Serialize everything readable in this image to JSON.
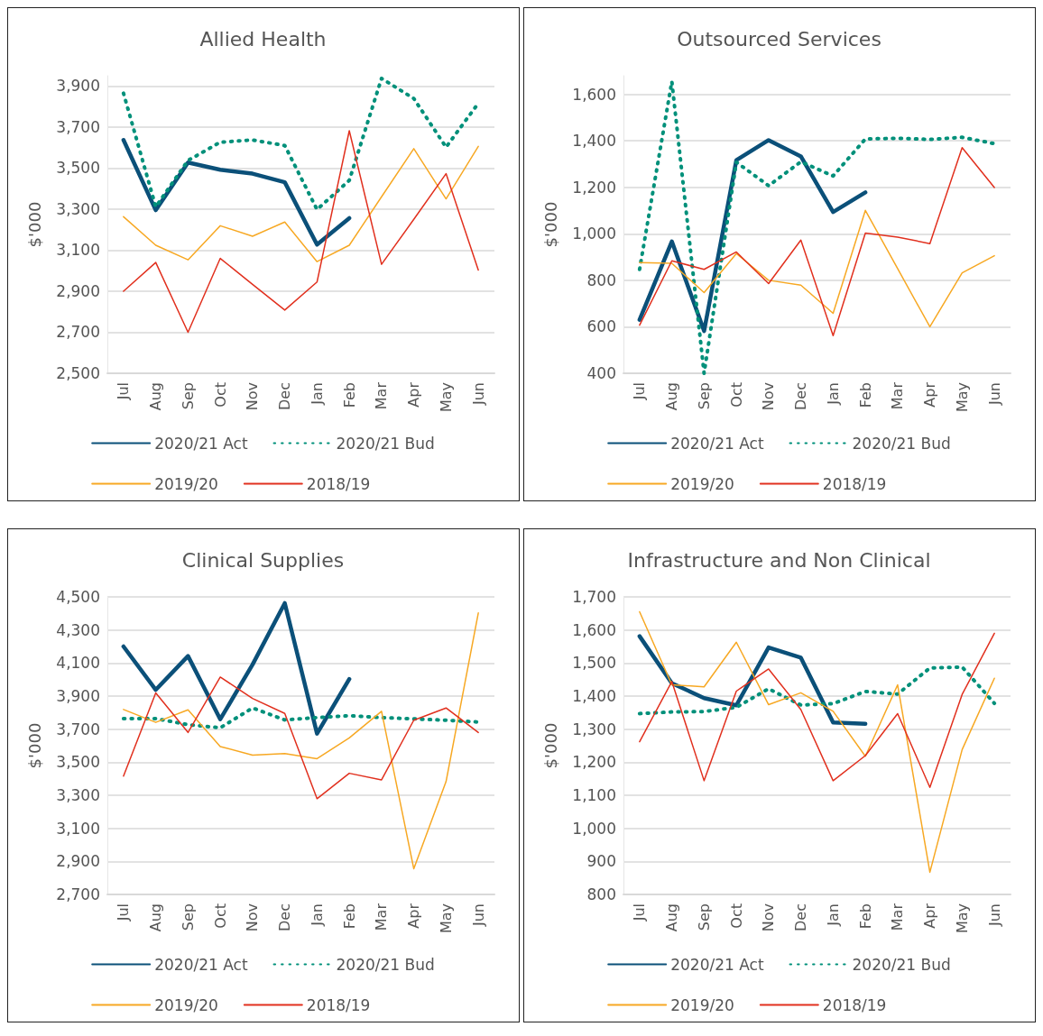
{
  "chart_data": [
    {
      "type": "line",
      "title": "Allied Health",
      "ylabel": "$'000",
      "categories": [
        "Jul",
        "Aug",
        "Sep",
        "Oct",
        "Nov",
        "Dec",
        "Jan",
        "Feb",
        "Mar",
        "Apr",
        "May",
        "Jun"
      ],
      "ylim": [
        2500,
        3950
      ],
      "yticks": [
        {
          "value": 2500,
          "label": "2,500"
        },
        {
          "value": 2700,
          "label": "2,700"
        },
        {
          "value": 2900,
          "label": "2,900"
        },
        {
          "value": 3100,
          "label": "3,100"
        },
        {
          "value": 3300,
          "label": "3,300"
        },
        {
          "value": 3500,
          "label": "3,500"
        },
        {
          "value": 3700,
          "label": "3,700"
        },
        {
          "value": 3900,
          "label": "3,900"
        }
      ],
      "grid": "y",
      "legend": "bottom",
      "marker": "none",
      "series": [
        {
          "name": "2020/21 Act",
          "color": "#0b5079",
          "line_style": "solid",
          "values": [
            3637,
            3295,
            3527,
            3492,
            3473,
            3431,
            3127,
            3256,
            null,
            null,
            null,
            null
          ]
        },
        {
          "name": "2020/21 Bud",
          "color": "#00907a",
          "line_style": "dotted",
          "values": [
            3865,
            3311,
            3537,
            3626,
            3637,
            3610,
            3298,
            3440,
            3937,
            3839,
            3602,
            3816
          ]
        },
        {
          "name": "2019/20",
          "color": "#f7a823",
          "line_style": "solid",
          "values": [
            3263,
            3124,
            3053,
            3219,
            3168,
            3237,
            3044,
            3124,
            3360,
            3595,
            3350,
            3606
          ]
        },
        {
          "name": "2018/19",
          "color": "#e1301e",
          "line_style": "solid",
          "values": [
            2900,
            3040,
            2700,
            3060,
            2933,
            2808,
            2945,
            3682,
            3031,
            3250,
            3473,
            3003
          ]
        }
      ]
    },
    {
      "type": "line",
      "title": "Outsourced Services",
      "ylabel": "$'000",
      "categories": [
        "Jul",
        "Aug",
        "Sep",
        "Oct",
        "Nov",
        "Dec",
        "Jan",
        "Feb",
        "Mar",
        "Apr",
        "May",
        "Jun"
      ],
      "ylim": [
        400,
        1680
      ],
      "yticks": [
        400,
        600,
        800,
        {
          "value": 1000,
          "label": "1,000"
        },
        {
          "value": 1200,
          "label": "1,200"
        },
        {
          "value": 1400,
          "label": "1,400"
        },
        {
          "value": 1600,
          "label": "1,600"
        }
      ],
      "grid": "y",
      "legend": "bottom",
      "marker": "none",
      "series": [
        {
          "name": "2020/21 Act",
          "color": "#0b5079",
          "line_style": "solid",
          "values": [
            630,
            967,
            582,
            1317,
            1403,
            1333,
            1094,
            1178,
            null,
            null,
            null,
            null
          ]
        },
        {
          "name": "2020/21 Bud",
          "color": "#00907a",
          "line_style": "dotted",
          "values": [
            847,
            1655,
            400,
            1308,
            1207,
            1310,
            1249,
            1408,
            1411,
            1406,
            1415,
            1388
          ]
        },
        {
          "name": "2019/20",
          "color": "#f7a823",
          "line_style": "solid",
          "values": [
            876,
            873,
            747,
            915,
            800,
            779,
            658,
            1101,
            850,
            600,
            832,
            906
          ]
        },
        {
          "name": "2018/19",
          "color": "#e1301e",
          "line_style": "solid",
          "values": [
            607,
            884,
            847,
            922,
            786,
            973,
            562,
            1003,
            986,
            958,
            1371,
            1199
          ]
        }
      ]
    },
    {
      "type": "line",
      "title": "Clinical Supplies",
      "ylabel": "$'000",
      "categories": [
        "Jul",
        "Aug",
        "Sep",
        "Oct",
        "Nov",
        "Dec",
        "Jan",
        "Feb",
        "Mar",
        "Apr",
        "May",
        "Jun"
      ],
      "ylim": [
        2700,
        4500
      ],
      "yticks": [
        {
          "value": 2700,
          "label": "2,700"
        },
        {
          "value": 2900,
          "label": "2,900"
        },
        {
          "value": 3100,
          "label": "3,100"
        },
        {
          "value": 3300,
          "label": "3,300"
        },
        {
          "value": 3500,
          "label": "3,500"
        },
        {
          "value": 3700,
          "label": "3,700"
        },
        {
          "value": 3900,
          "label": "3,900"
        },
        {
          "value": 4100,
          "label": "4,100"
        },
        {
          "value": 4300,
          "label": "4,300"
        },
        {
          "value": 4500,
          "label": "4,500"
        }
      ],
      "grid": "y",
      "legend": "bottom",
      "marker": "none",
      "series": [
        {
          "name": "2020/21 Act",
          "color": "#0b5079",
          "line_style": "solid",
          "values": [
            4200,
            3938,
            4142,
            3760,
            4090,
            4462,
            3673,
            4003,
            null,
            null,
            null,
            null
          ]
        },
        {
          "name": "2020/21 Bud",
          "color": "#00907a",
          "line_style": "dotted",
          "values": [
            3764,
            3764,
            3727,
            3708,
            3828,
            3756,
            3770,
            3781,
            3770,
            3762,
            3754,
            3743
          ]
        },
        {
          "name": "2019/20",
          "color": "#f7a823",
          "line_style": "solid",
          "values": [
            3819,
            3741,
            3817,
            3595,
            3543,
            3552,
            3521,
            3647,
            3808,
            2855,
            3383,
            4403
          ]
        },
        {
          "name": "2018/19",
          "color": "#e1301e",
          "line_style": "solid",
          "values": [
            3416,
            3919,
            3680,
            4015,
            3886,
            3795,
            3279,
            3433,
            3393,
            3754,
            3828,
            3680
          ]
        }
      ]
    },
    {
      "type": "line",
      "title": "Infrastructure and Non Clinical",
      "ylabel": "$'000",
      "categories": [
        "Jul",
        "Aug",
        "Sep",
        "Oct",
        "Nov",
        "Dec",
        "Jan",
        "Feb",
        "Mar",
        "Apr",
        "May",
        "Jun"
      ],
      "ylim": [
        800,
        1700
      ],
      "yticks": [
        800,
        900,
        {
          "value": 1000,
          "label": "1,000"
        },
        {
          "value": 1100,
          "label": "1,100"
        },
        {
          "value": 1200,
          "label": "1,200"
        },
        {
          "value": 1300,
          "label": "1,300"
        },
        {
          "value": 1400,
          "label": "1,400"
        },
        {
          "value": 1500,
          "label": "1,500"
        },
        {
          "value": 1600,
          "label": "1,600"
        },
        {
          "value": 1700,
          "label": "1,700"
        }
      ],
      "grid": "y",
      "legend": "bottom",
      "marker": "none",
      "series": [
        {
          "name": "2020/21 Act",
          "color": "#0b5079",
          "line_style": "solid",
          "values": [
            1581,
            1439,
            1394,
            1372,
            1547,
            1516,
            1320,
            1316,
            null,
            null,
            null,
            null
          ]
        },
        {
          "name": "2020/21 Bud",
          "color": "#00907a",
          "line_style": "dotted",
          "values": [
            1347,
            1352,
            1353,
            1366,
            1422,
            1373,
            1377,
            1414,
            1406,
            1485,
            1488,
            1378
          ]
        },
        {
          "name": "2019/20",
          "color": "#f7a823",
          "line_style": "solid",
          "values": [
            1655,
            1434,
            1428,
            1563,
            1374,
            1410,
            1354,
            1218,
            1434,
            867,
            1238,
            1454
          ]
        },
        {
          "name": "2018/19",
          "color": "#e1301e",
          "line_style": "solid",
          "values": [
            1262,
            1444,
            1144,
            1415,
            1482,
            1359,
            1144,
            1220,
            1347,
            1124,
            1405,
            1590
          ]
        }
      ]
    }
  ]
}
